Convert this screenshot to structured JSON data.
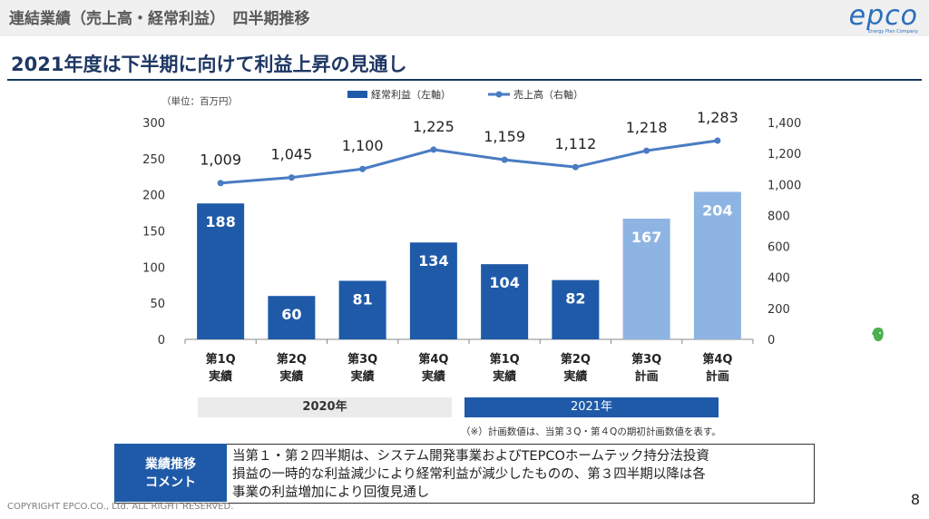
{
  "header": {
    "title": "連結業績（売上高・経常利益）　四半期推移"
  },
  "logo": {
    "main": "epco",
    "sub": "Energy Plan Company"
  },
  "heading": "2021年度は下半期に向けて利益上昇の見通し",
  "unit": "（単位：百万円）",
  "colors": {
    "bar_actual": "#1f5aa8",
    "bar_plan": "#8eb4e3",
    "line": "#4a7cc3",
    "heading": "#1f3864"
  },
  "chart_data": {
    "type": "bar",
    "categories": [
      [
        "第1Q",
        "実績"
      ],
      [
        "第2Q",
        "実績"
      ],
      [
        "第3Q",
        "実績"
      ],
      [
        "第4Q",
        "実績"
      ],
      [
        "第1Q",
        "実績"
      ],
      [
        "第2Q",
        "実績"
      ],
      [
        "第3Q",
        "計画"
      ],
      [
        "第4Q",
        "計画"
      ]
    ],
    "series": [
      {
        "name": "経常利益（左軸）",
        "type": "bar",
        "axis": "left",
        "values": [
          188,
          60,
          81,
          134,
          104,
          82,
          167,
          204
        ],
        "labels": [
          "188",
          "60",
          "81",
          "134",
          "104",
          "82",
          "167",
          "204"
        ],
        "plan": [
          false,
          false,
          false,
          false,
          false,
          false,
          true,
          true
        ]
      },
      {
        "name": "売上高（右軸）",
        "type": "line",
        "axis": "right",
        "values": [
          1009,
          1045,
          1100,
          1225,
          1159,
          1112,
          1218,
          1283
        ],
        "labels": [
          "1,009",
          "1,045",
          "1,100",
          "1,225",
          "1,159",
          "1,112",
          "1,218",
          "1,283"
        ]
      }
    ],
    "y_left": {
      "ticks": [
        "0",
        "50",
        "100",
        "150",
        "200",
        "250",
        "300"
      ],
      "range": [
        0,
        300
      ]
    },
    "y_right": {
      "ticks": [
        "0",
        "200",
        "400",
        "600",
        "800",
        "1,000",
        "1,200",
        "1,400"
      ],
      "range": [
        0,
        1400
      ]
    },
    "legend_position": "top"
  },
  "years": {
    "y2020": "2020年",
    "y2021": "2021年"
  },
  "footnote": "（※）計画数値は、当第３Q・第４Qの期初計画数値を表す。",
  "comment": {
    "label_line1": "業績推移",
    "label_line2": "コメント",
    "line1": "当第１・第２四半期は、システム開発事業およびTEPCOホームテック持分法投資",
    "line2": "損益の一時的な利益減少により経常利益が減少したものの、第３四半期以降は各",
    "line3": "事業の利益増加により回復見通し"
  },
  "copyright": "COPYRIGHT EPCO.CO., Ltd. ALL RIGHT RESERVED.",
  "page_number": "8"
}
